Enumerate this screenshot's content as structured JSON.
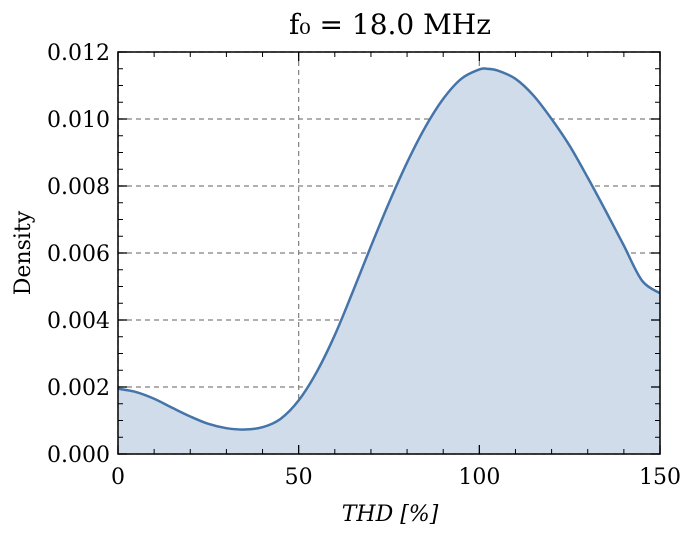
{
  "chart_data": {
    "type": "area",
    "title": "f₀ = 18.0 MHz",
    "xlabel": "THD [%]",
    "ylabel": "Density",
    "xlim": [
      0,
      150
    ],
    "ylim": [
      0,
      0.012
    ],
    "xticks": [
      "0",
      "50",
      "100",
      "150"
    ],
    "yticks": [
      "0.000",
      "0.002",
      "0.004",
      "0.006",
      "0.008",
      "0.010",
      "0.012"
    ],
    "grid": true,
    "line_color": "#4575a8",
    "fill_color": "#d0dcea",
    "x": [
      0,
      5,
      10,
      15,
      20,
      25,
      30,
      35,
      40,
      45,
      50,
      55,
      60,
      65,
      70,
      75,
      80,
      85,
      90,
      95,
      100,
      102,
      105,
      110,
      115,
      120,
      125,
      130,
      135,
      140,
      145,
      150
    ],
    "y": [
      0.00195,
      0.00185,
      0.00165,
      0.00138,
      0.00112,
      0.0009,
      0.00077,
      0.00073,
      0.0008,
      0.00105,
      0.0016,
      0.00245,
      0.00355,
      0.00485,
      0.0062,
      0.0075,
      0.0087,
      0.00975,
      0.0106,
      0.0112,
      0.01148,
      0.0115,
      0.01145,
      0.0112,
      0.0107,
      0.01,
      0.0092,
      0.00825,
      0.00725,
      0.00622,
      0.00518,
      0.0048
    ]
  }
}
